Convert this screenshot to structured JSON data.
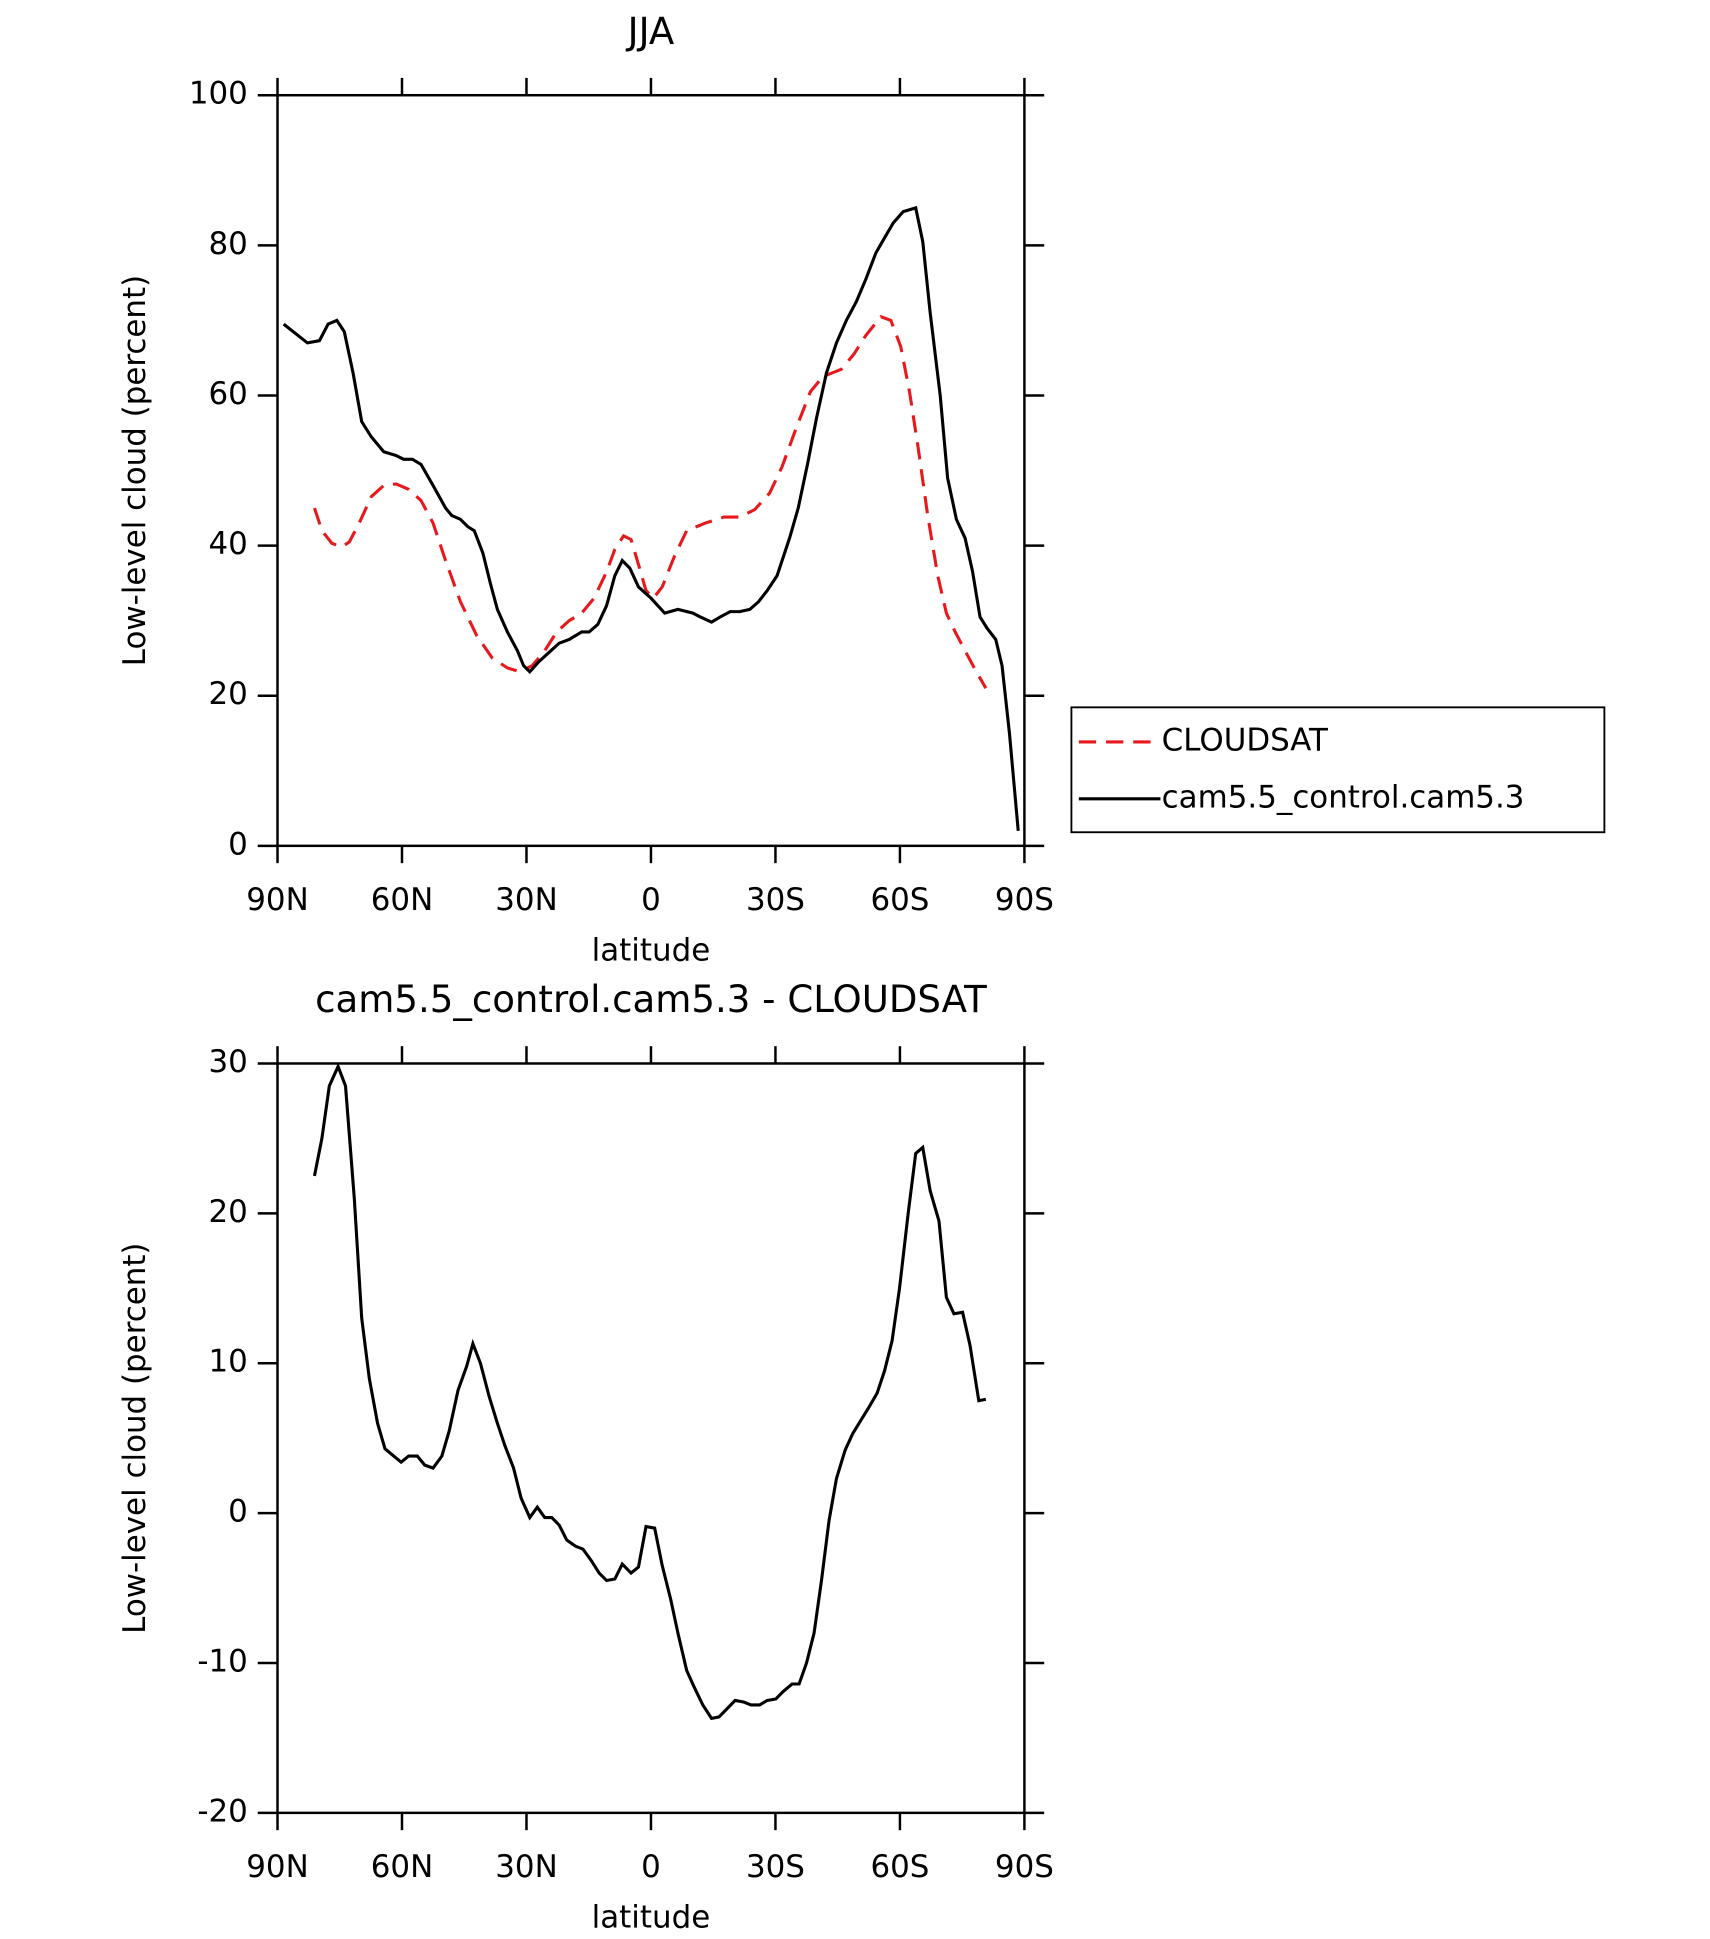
{
  "chart_data": [
    {
      "type": "line",
      "title": "JJA",
      "xlabel": "latitude",
      "ylabel": "Low-level cloud (percent)",
      "xlim": [
        90,
        -90
      ],
      "xticks": [
        {
          "value": 90,
          "label": "90N"
        },
        {
          "value": 60,
          "label": "60N"
        },
        {
          "value": 30,
          "label": "30N"
        },
        0,
        {
          "value": -30,
          "label": "30S"
        },
        {
          "value": -60,
          "label": "60S"
        },
        {
          "value": -90,
          "label": "90S"
        }
      ],
      "ylim": [
        0,
        100
      ],
      "yticks": [
        0,
        20,
        40,
        60,
        80,
        100
      ],
      "legend": "right",
      "series": [
        {
          "name": "CLOUDSAT",
          "color": "#e8191c",
          "dash": true,
          "x": [
            81.1,
            79.3,
            76.9,
            74.5,
            72.7,
            70.3,
            67.4,
            64.4,
            61.4,
            58.4,
            55.4,
            52.5,
            49.5,
            45.9,
            42,
            38.2,
            34.6,
            31.6,
            28.6,
            25.6,
            22.7,
            19.7,
            16.7,
            13.7,
            10.7,
            8.7,
            6.6,
            4.8,
            3,
            1.2,
            -0.6,
            -2.7,
            -5.6,
            -8.6,
            -13.1,
            -17.6,
            -21.4,
            -25,
            -28.6,
            -31.6,
            -34.9,
            -38.4,
            -41.4,
            -45.9,
            -48.9,
            -51.8,
            -55.4,
            -57.8,
            -60.2,
            -62.3,
            -64.4,
            -66.7,
            -69.1,
            -71.2,
            -73.3,
            -75.7,
            -78.1,
            -80.7
          ],
          "values": [
            45,
            42,
            40.3,
            39.8,
            40.5,
            43,
            46.5,
            48,
            48.2,
            47.5,
            46,
            43,
            38,
            32.5,
            28,
            25,
            23.7,
            23.2,
            24,
            26,
            28.5,
            30,
            31,
            33,
            36.5,
            39.5,
            41.3,
            40.8,
            37.5,
            34,
            33,
            34.5,
            38.5,
            42,
            43,
            43.8,
            43.8,
            44.8,
            47,
            50.5,
            55.5,
            60.5,
            62.5,
            63.5,
            65.5,
            68,
            70.5,
            70,
            66.5,
            60.5,
            53,
            44,
            36,
            31,
            28.5,
            26,
            23.5,
            21
          ]
        },
        {
          "name": "cam5.5_control.cam5.3",
          "color": "#000000",
          "dash": false,
          "x": [
            88.5,
            82.8,
            79.9,
            77.8,
            75.7,
            73.9,
            71.8,
            69.7,
            67.4,
            64.4,
            61.4,
            59.6,
            57.5,
            55.4,
            52.5,
            49.5,
            48,
            45.9,
            44.1,
            42.6,
            40.5,
            38.7,
            37,
            34.6,
            32.2,
            30.7,
            29.2,
            27.1,
            24.1,
            22.1,
            19.7,
            16.7,
            14.9,
            12.8,
            10.7,
            8.7,
            6.9,
            5.1,
            3,
            0,
            -3.3,
            -6.5,
            -10.1,
            -11.9,
            -14.6,
            -16.7,
            -19.1,
            -21.4,
            -23.8,
            -25.9,
            -28,
            -30.4,
            -33.4,
            -35.5,
            -37.8,
            -39.9,
            -42.3,
            -44.7,
            -47.1,
            -49.5,
            -51.8,
            -54.2,
            -56.3,
            -58.4,
            -60.8,
            -63.8,
            -65.5,
            -67.3,
            -69.7,
            -71.5,
            -73.6,
            -75.7,
            -77.5,
            -79.3,
            -81,
            -83.1,
            -84.6,
            -86.4,
            -88.5
          ],
          "values": [
            69.5,
            67,
            67.3,
            69.5,
            70,
            68.5,
            63,
            56.5,
            54.5,
            52.5,
            52,
            51.5,
            51.5,
            50.8,
            48,
            45,
            44,
            43.5,
            42.5,
            42,
            39,
            35,
            31.5,
            28.5,
            26,
            24,
            23.2,
            24.5,
            26,
            27,
            27.5,
            28.5,
            28.5,
            29.5,
            32,
            36,
            38,
            37,
            34.5,
            33,
            31,
            31.5,
            31,
            30.5,
            29.8,
            30.5,
            31.2,
            31.2,
            31.5,
            32.5,
            34,
            36,
            41,
            45,
            51,
            57,
            63,
            67,
            70,
            72.5,
            75.5,
            79,
            81,
            83,
            84.5,
            85,
            80.5,
            71,
            60,
            49,
            43.5,
            41,
            36.5,
            30.5,
            29,
            27.5,
            24,
            15,
            2
          ]
        }
      ]
    },
    {
      "type": "line",
      "title": "cam5.5_control.cam5.3 - CLOUDSAT",
      "xlabel": "latitude",
      "ylabel": "Low-level cloud (percent)",
      "xlim": [
        90,
        -90
      ],
      "xticks": [
        {
          "value": 90,
          "label": "90N"
        },
        {
          "value": 60,
          "label": "60N"
        },
        {
          "value": 30,
          "label": "30N"
        },
        0,
        {
          "value": -30,
          "label": "30S"
        },
        {
          "value": -60,
          "label": "60S"
        },
        {
          "value": -90,
          "label": "90S"
        }
      ],
      "ylim": [
        -20,
        30
      ],
      "yticks": [
        -20,
        -10,
        0,
        10,
        20,
        30
      ],
      "series": [
        {
          "color": "#000000",
          "dash": false,
          "x": [
            81.1,
            79.3,
            77.5,
            75.4,
            73.6,
            71.5,
            69.7,
            67.9,
            65.9,
            64.1,
            62,
            60.2,
            58.4,
            56.3,
            54.5,
            52.5,
            50.4,
            48.6,
            46.5,
            44.4,
            42.9,
            41.1,
            39,
            37,
            35.2,
            33.1,
            31.3,
            29.2,
            27.4,
            25.6,
            23.9,
            22.1,
            20.3,
            18.2,
            16.4,
            14.3,
            12.5,
            10.7,
            8.7,
            6.9,
            4.8,
            3,
            1.2,
            -0.9,
            -2.7,
            -4.8,
            -6.5,
            -8.6,
            -10.4,
            -12.5,
            -14.6,
            -16.4,
            -18.5,
            -20.3,
            -22.3,
            -24.1,
            -26.2,
            -28,
            -30.1,
            -31.9,
            -34,
            -35.7,
            -37.5,
            -39.3,
            -41.1,
            -42.9,
            -44.7,
            -46.8,
            -48.6,
            -50.6,
            -52.4,
            -54.5,
            -56.3,
            -58.1,
            -59.9,
            -62,
            -63.8,
            -65.5,
            -67.3,
            -69.4,
            -71.2,
            -73,
            -75.1,
            -76.9,
            -79,
            -80.7
          ],
          "values": [
            22.5,
            25,
            28.5,
            29.8,
            28.5,
            21,
            13,
            9,
            6,
            4.3,
            3.8,
            3.4,
            3.8,
            3.8,
            3.2,
            3,
            3.8,
            5.5,
            8.2,
            9.8,
            11.3,
            10,
            7.8,
            6,
            4.5,
            3,
            1,
            -0.3,
            0.4,
            -0.3,
            -0.3,
            -0.8,
            -1.8,
            -2.2,
            -2.4,
            -3.2,
            -4,
            -4.5,
            -4.4,
            -3.4,
            -4,
            -3.6,
            -0.9,
            -1,
            -3.5,
            -5.8,
            -8,
            -10.5,
            -11.6,
            -12.8,
            -13.7,
            -13.6,
            -13,
            -12.5,
            -12.6,
            -12.8,
            -12.8,
            -12.5,
            -12.4,
            -11.9,
            -11.4,
            -11.4,
            -10,
            -8,
            -4.5,
            -0.5,
            2.3,
            4.2,
            5.3,
            6.2,
            7,
            8,
            9.5,
            11.5,
            15,
            20,
            24,
            24.4,
            21.5,
            19.5,
            14.4,
            13.3,
            13.4,
            11.2,
            7.5,
            7.6
          ]
        }
      ]
    }
  ]
}
